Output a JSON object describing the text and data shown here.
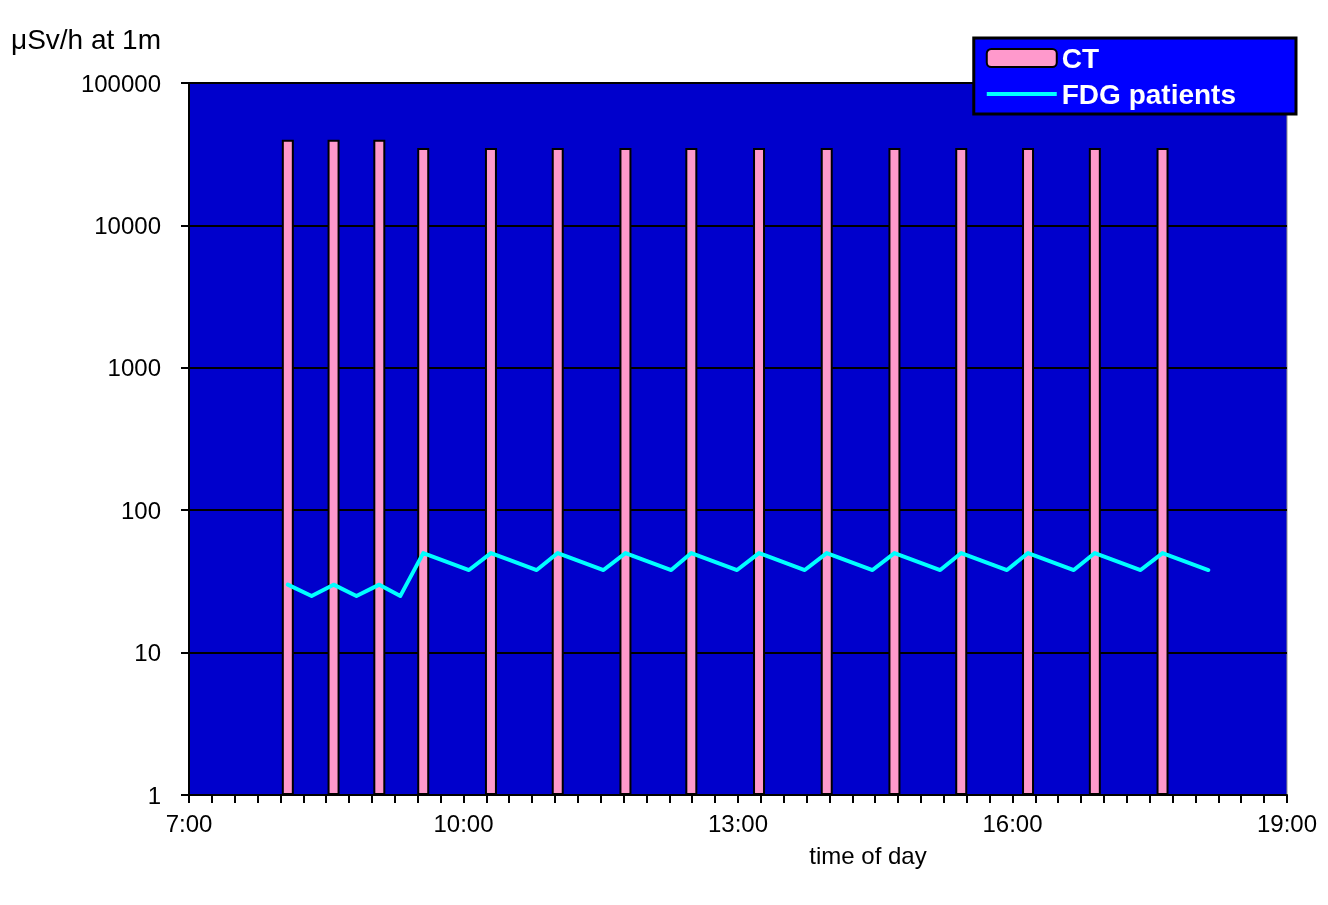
{
  "chart_data": {
    "type": "bar",
    "xlabel": "time of day",
    "ylabel": "μSv/h at 1m",
    "xlim": [
      7,
      19
    ],
    "xticks": [
      {
        "value": 7,
        "label": "7:00"
      },
      {
        "value": 7.25,
        "label": null
      },
      {
        "value": 7.5,
        "label": null
      },
      {
        "value": 7.75,
        "label": null
      },
      {
        "value": 8,
        "label": null
      },
      {
        "value": 8.25,
        "label": null
      },
      {
        "value": 8.5,
        "label": null
      },
      {
        "value": 8.75,
        "label": null
      },
      {
        "value": 9,
        "label": null
      },
      {
        "value": 9.25,
        "label": null
      },
      {
        "value": 9.5,
        "label": null
      },
      {
        "value": 9.75,
        "label": null
      },
      {
        "value": 10,
        "label": "10:00"
      },
      {
        "value": 10.25,
        "label": null
      },
      {
        "value": 10.5,
        "label": null
      },
      {
        "value": 10.75,
        "label": null
      },
      {
        "value": 11,
        "label": null
      },
      {
        "value": 11.25,
        "label": null
      },
      {
        "value": 11.5,
        "label": null
      },
      {
        "value": 11.75,
        "label": null
      },
      {
        "value": 12,
        "label": null
      },
      {
        "value": 12.25,
        "label": null
      },
      {
        "value": 12.5,
        "label": null
      },
      {
        "value": 12.75,
        "label": null
      },
      {
        "value": 13,
        "label": "13:00"
      },
      {
        "value": 13.25,
        "label": null
      },
      {
        "value": 13.5,
        "label": null
      },
      {
        "value": 13.75,
        "label": null
      },
      {
        "value": 14,
        "label": null
      },
      {
        "value": 14.25,
        "label": null
      },
      {
        "value": 14.5,
        "label": null
      },
      {
        "value": 14.75,
        "label": null
      },
      {
        "value": 15,
        "label": null
      },
      {
        "value": 15.25,
        "label": null
      },
      {
        "value": 15.5,
        "label": null
      },
      {
        "value": 15.75,
        "label": null
      },
      {
        "value": 16,
        "label": "16:00"
      },
      {
        "value": 16.25,
        "label": null
      },
      {
        "value": 16.5,
        "label": null
      },
      {
        "value": 16.75,
        "label": null
      },
      {
        "value": 17,
        "label": null
      },
      {
        "value": 17.25,
        "label": null
      },
      {
        "value": 17.5,
        "label": null
      },
      {
        "value": 17.75,
        "label": null
      },
      {
        "value": 18,
        "label": null
      },
      {
        "value": 18.25,
        "label": null
      },
      {
        "value": 18.5,
        "label": null
      },
      {
        "value": 18.75,
        "label": null
      },
      {
        "value": 19,
        "label": "19:00"
      }
    ],
    "ylim": [
      1,
      100000
    ],
    "yticks": [
      1,
      10,
      100,
      1000,
      10000,
      100000
    ],
    "log": "y",
    "grid": "y",
    "legend": "top right",
    "series": [
      {
        "name": "CT",
        "color": "#ff99cc",
        "x": [
          8.08,
          8.58,
          9.08,
          9.56,
          10.3,
          11.03,
          11.77,
          12.49,
          13.23,
          13.97,
          14.71,
          15.44,
          16.17,
          16.9,
          17.64
        ],
        "values": [
          40000,
          40000,
          40000,
          35000,
          35000,
          35000,
          35000,
          35000,
          35000,
          35000,
          35000,
          35000,
          35000,
          35000,
          35000
        ]
      },
      {
        "name": "FDG patients",
        "type": "line",
        "color": "#00ffff",
        "marker": "none",
        "line_style": "solid",
        "x": [
          8.08,
          8.34,
          8.58,
          8.83,
          9.08,
          9.31,
          9.56,
          10.06,
          10.3,
          10.8,
          11.03,
          11.53,
          11.77,
          12.27,
          12.49,
          12.99,
          13.23,
          13.73,
          13.97,
          14.47,
          14.71,
          15.21,
          15.44,
          15.94,
          16.17,
          16.67,
          16.9,
          17.4,
          17.64,
          18.14
        ],
        "values": [
          30,
          25,
          30,
          25,
          30,
          25,
          50,
          38,
          50,
          38,
          50,
          38,
          50,
          38,
          50,
          38,
          50,
          38,
          50,
          38,
          50,
          38,
          50,
          38,
          50,
          38,
          50,
          38,
          50,
          38
        ]
      }
    ]
  }
}
